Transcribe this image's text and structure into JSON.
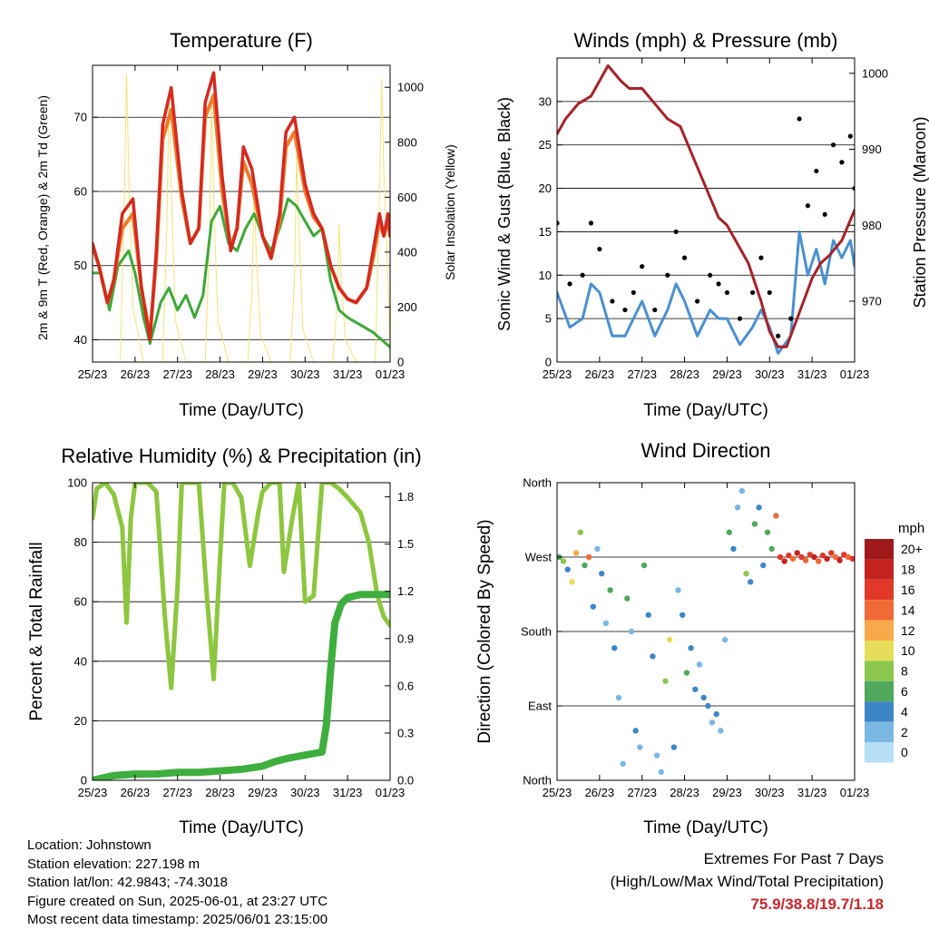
{
  "panels": {
    "temperature": {
      "title": "Temperature (F)",
      "ylabel_left": "2m & 9m T (Red, Orange) & 2m Td (Green)",
      "ylabel_right": "Solar Insolation (Yellow)",
      "xlabel": "Time (Day/UTC)"
    },
    "winds": {
      "title": "Winds (mph) & Pressure (mb)",
      "ylabel_left": "Sonic Wind & Gust (Blue, Black)",
      "ylabel_right": "Station Pressure (Maroon)",
      "xlabel": "Time (Day/UTC)"
    },
    "humidity": {
      "title": "Relative Humidity (%) & Precipitation (in)",
      "ylabel_left": "Percent & Total Rainfall",
      "xlabel": "Time (Day/UTC)"
    },
    "direction": {
      "title": "Wind Direction",
      "ylabel_left": "Direction (Colored By Speed)",
      "xlabel": "Time (Day/UTC)",
      "colorbar_unit": "mph"
    }
  },
  "info": {
    "location": "Location: Johnstown",
    "elevation": "Station elevation: 227.198 m",
    "latlon": "Station lat/lon: 42.9843; -74.3018",
    "created": "Figure created on Sun, 2025-06-01, at 23:27 UTC",
    "recent": "Most recent data timestamp: 2025/06/01 23:15:00"
  },
  "extremes": {
    "line1": "Extremes For Past 7 Days",
    "line2": "(High/Low/Max Wind/Total Precipitation)",
    "values": "75.9/38.8/19.7/1.18"
  },
  "colors": {
    "temp_2m": "#d42a20",
    "temp_9m": "#f07a2a",
    "dewpoint": "#3da838",
    "solar": "#f5e27a",
    "wind": "#4a90d0",
    "gust": "#000000",
    "pressure": "#a5232a",
    "rh": "#8dc63f",
    "precip": "#3eae3e"
  },
  "chart_data": [
    {
      "type": "line",
      "panel": "temperature",
      "x_ticks": [
        "25/23",
        "26/23",
        "27/23",
        "28/23",
        "29/23",
        "30/23",
        "31/23",
        "01/23"
      ],
      "xlim": [
        0,
        7
      ],
      "ylim": [
        37,
        77
      ],
      "y_ticks": [
        40,
        50,
        60,
        70
      ],
      "y2lim": [
        0,
        1080
      ],
      "y2_ticks": [
        0,
        200,
        400,
        600,
        800,
        1000
      ],
      "series": [
        {
          "name": "2m T",
          "axis": "left",
          "color": "#d42a20",
          "x": [
            0,
            0.15,
            0.35,
            0.5,
            0.7,
            0.95,
            1.15,
            1.35,
            1.5,
            1.65,
            1.85,
            2.1,
            2.3,
            2.5,
            2.65,
            2.85,
            3.05,
            3.25,
            3.4,
            3.55,
            3.75,
            4.0,
            4.2,
            4.4,
            4.55,
            4.75,
            5.0,
            5.2,
            5.4,
            5.6,
            5.8,
            6.0,
            6.2,
            6.45,
            6.6,
            6.75,
            6.85,
            6.95,
            7.0
          ],
          "y": [
            53,
            50,
            45,
            48,
            57,
            59,
            47,
            40,
            52,
            69,
            74,
            60,
            53,
            55,
            72,
            76,
            62,
            52,
            55,
            66,
            63,
            54,
            51,
            57,
            68,
            70,
            61,
            57,
            55,
            50,
            47,
            45.5,
            45,
            47,
            52,
            57,
            54,
            57,
            54
          ]
        },
        {
          "name": "9m T",
          "axis": "left",
          "color": "#f07a2a",
          "x": [
            0,
            0.15,
            0.35,
            0.5,
            0.7,
            0.95,
            1.15,
            1.35,
            1.5,
            1.65,
            1.85,
            2.1,
            2.3,
            2.5,
            2.65,
            2.85,
            3.05,
            3.25,
            3.4,
            3.55,
            3.75,
            4.0,
            4.2,
            4.4,
            4.55,
            4.75,
            5.0,
            5.2,
            5.4,
            5.6,
            5.8,
            6.0,
            6.2,
            6.45,
            6.6,
            6.75,
            6.85,
            6.95,
            7.0
          ],
          "y": [
            52.5,
            50,
            45,
            48,
            55,
            57,
            47,
            40.5,
            51,
            67,
            71,
            59,
            53,
            55,
            70,
            73,
            60,
            52.5,
            55,
            64,
            61,
            54,
            51,
            56,
            66,
            68,
            60,
            56.5,
            55,
            50,
            47,
            45.5,
            45,
            47,
            51,
            56,
            54,
            56,
            54
          ]
        },
        {
          "name": "2m Td",
          "axis": "left",
          "color": "#3da838",
          "x": [
            0,
            0.2,
            0.4,
            0.6,
            0.85,
            1.0,
            1.2,
            1.35,
            1.6,
            1.8,
            2.0,
            2.2,
            2.4,
            2.6,
            2.8,
            3.0,
            3.2,
            3.4,
            3.6,
            3.8,
            4.0,
            4.2,
            4.4,
            4.6,
            4.8,
            5.0,
            5.2,
            5.4,
            5.6,
            5.8,
            6.0,
            6.3,
            6.6,
            6.8,
            7.0
          ],
          "y": [
            49,
            49,
            44,
            50,
            52,
            49,
            43,
            39.5,
            45,
            47,
            44,
            46,
            43,
            46,
            56,
            58,
            53,
            52,
            55,
            57,
            54,
            52,
            55,
            59,
            58,
            56,
            54,
            55,
            48,
            44,
            43,
            42,
            41,
            40,
            39
          ]
        },
        {
          "name": "Solar",
          "axis": "right",
          "color": "#f5e27a",
          "x": [
            0,
            0.65,
            0.75,
            0.8,
            0.85,
            0.95,
            1.2,
            1.65,
            1.75,
            1.8,
            1.85,
            1.95,
            2.2,
            2.65,
            2.75,
            2.8,
            2.85,
            2.95,
            3.2,
            3.65,
            3.75,
            3.8,
            3.85,
            3.95,
            4.2,
            4.65,
            4.75,
            4.8,
            4.85,
            4.95,
            5.2,
            5.65,
            5.75,
            5.8,
            5.85,
            5.95,
            6.2,
            6.65,
            6.75,
            6.8,
            6.85,
            6.95,
            7.0
          ],
          "y": [
            0,
            0,
            600,
            1050,
            700,
            200,
            0,
            0,
            500,
            980,
            650,
            150,
            0,
            0,
            450,
            960,
            600,
            150,
            0,
            0,
            250,
            620,
            400,
            100,
            0,
            0,
            300,
            750,
            500,
            120,
            0,
            0,
            200,
            500,
            300,
            80,
            0,
            0,
            600,
            1030,
            700,
            300,
            0
          ]
        }
      ]
    },
    {
      "type": "line",
      "panel": "winds",
      "x_ticks": [
        "25/23",
        "26/23",
        "27/23",
        "28/23",
        "29/23",
        "30/23",
        "31/23",
        "01/23"
      ],
      "xlim": [
        0,
        7
      ],
      "ylim": [
        0,
        35
      ],
      "y_ticks": [
        0,
        5,
        10,
        15,
        20,
        25,
        30
      ],
      "y2lim": [
        962,
        1002
      ],
      "y2_ticks": [
        970,
        980,
        990,
        1000
      ],
      "series": [
        {
          "name": "Gust",
          "axis": "left",
          "color": "#000000",
          "x": [
            0,
            0.3,
            0.6,
            0.8,
            1.0,
            1.3,
            1.6,
            1.8,
            2.0,
            2.3,
            2.6,
            2.8,
            3.0,
            3.3,
            3.6,
            3.8,
            4.0,
            4.3,
            4.6,
            4.8,
            5.0,
            5.2,
            5.5,
            5.7,
            5.9,
            6.1,
            6.3,
            6.5,
            6.7,
            6.9,
            7.0
          ],
          "y": [
            16,
            9,
            10,
            16,
            13,
            7,
            6,
            8,
            11,
            6,
            10,
            15,
            12,
            7,
            10,
            9,
            8,
            5,
            8,
            12,
            8,
            3,
            5,
            28,
            18,
            22,
            17,
            25,
            23,
            26,
            20
          ]
        },
        {
          "name": "Wind",
          "axis": "left",
          "color": "#4a90d0",
          "x": [
            0,
            0.3,
            0.6,
            0.8,
            1.0,
            1.3,
            1.6,
            1.8,
            2.0,
            2.3,
            2.6,
            2.8,
            3.0,
            3.3,
            3.6,
            3.8,
            4.0,
            4.3,
            4.6,
            4.8,
            5.0,
            5.2,
            5.5,
            5.7,
            5.9,
            6.1,
            6.3,
            6.5,
            6.7,
            6.9,
            7.0
          ],
          "y": [
            8,
            4,
            5,
            9,
            8,
            3,
            3,
            5,
            7,
            3,
            6,
            9,
            7,
            3,
            6,
            5,
            5,
            2,
            4,
            6,
            4,
            1,
            3,
            15,
            10,
            13,
            9,
            14,
            12,
            14,
            11
          ]
        },
        {
          "name": "Pressure",
          "axis": "right",
          "color": "#a5232a",
          "x": [
            0,
            0.2,
            0.5,
            0.8,
            1.0,
            1.2,
            1.5,
            1.7,
            2.0,
            2.3,
            2.6,
            2.9,
            3.2,
            3.5,
            3.8,
            4.0,
            4.2,
            4.5,
            4.8,
            5.0,
            5.2,
            5.4,
            5.6,
            5.8,
            6.0,
            6.2,
            6.4,
            6.7,
            7.0
          ],
          "y": [
            992,
            994,
            996,
            997,
            999,
            1001,
            999,
            998,
            998,
            996,
            994,
            993,
            989,
            985,
            981,
            980,
            978,
            975,
            970,
            966,
            964,
            964,
            967,
            970,
            973,
            975,
            976,
            978,
            982
          ]
        }
      ]
    },
    {
      "type": "line",
      "panel": "humidity",
      "x_ticks": [
        "25/23",
        "26/23",
        "27/23",
        "28/23",
        "29/23",
        "30/23",
        "31/23",
        "01/23"
      ],
      "xlim": [
        0,
        7
      ],
      "ylim": [
        0,
        100
      ],
      "y_ticks": [
        0,
        20,
        40,
        60,
        80,
        100
      ],
      "y2lim": [
        0,
        1.89
      ],
      "y2_ticks": [
        0.0,
        0.3,
        0.6,
        0.9,
        1.2,
        1.5,
        1.8
      ],
      "series": [
        {
          "name": "RH",
          "axis": "left",
          "color": "#8dc63f",
          "x": [
            0,
            0.1,
            0.3,
            0.5,
            0.7,
            0.8,
            0.9,
            1.0,
            1.1,
            1.3,
            1.5,
            1.7,
            1.85,
            2.0,
            2.1,
            2.3,
            2.5,
            2.7,
            2.85,
            3.0,
            3.1,
            3.3,
            3.5,
            3.7,
            3.9,
            4.0,
            4.2,
            4.4,
            4.5,
            4.7,
            4.85,
            5.0,
            5.2,
            5.4,
            5.6,
            5.8,
            6.0,
            6.3,
            6.5,
            6.7,
            6.85,
            7.0
          ],
          "y": [
            88,
            98,
            100,
            96,
            85,
            53,
            88,
            100,
            100,
            100,
            97,
            55,
            31,
            65,
            100,
            100,
            100,
            60,
            34,
            75,
            100,
            100,
            95,
            72,
            90,
            97,
            100,
            100,
            70,
            88,
            100,
            60,
            62,
            100,
            100,
            98,
            95,
            90,
            80,
            62,
            55,
            52
          ]
        },
        {
          "name": "Precip",
          "axis": "right",
          "color": "#3eae3e",
          "x": [
            0,
            0.5,
            1.0,
            1.5,
            2.0,
            2.5,
            3.0,
            3.5,
            4.0,
            4.3,
            4.6,
            4.8,
            5.0,
            5.2,
            5.4,
            5.5,
            5.6,
            5.7,
            5.8,
            5.85,
            6.0,
            6.3,
            6.6,
            7.0
          ],
          "y": [
            0,
            0.03,
            0.04,
            0.04,
            0.05,
            0.05,
            0.06,
            0.07,
            0.09,
            0.12,
            0.14,
            0.15,
            0.16,
            0.17,
            0.18,
            0.35,
            0.7,
            1.0,
            1.08,
            1.12,
            1.16,
            1.18,
            1.18,
            1.18
          ]
        }
      ]
    },
    {
      "type": "scatter",
      "panel": "direction",
      "x_ticks": [
        "25/23",
        "26/23",
        "27/23",
        "28/23",
        "29/23",
        "30/23",
        "31/23",
        "01/23"
      ],
      "xlim": [
        0,
        7
      ],
      "ylim": [
        0,
        360
      ],
      "y_ticks": [
        0,
        90,
        180,
        270,
        360
      ],
      "y_tick_labels": [
        "North",
        "East",
        "South",
        "West",
        "North"
      ],
      "colorbar": {
        "unit": "mph",
        "labels": [
          "20+",
          "18",
          "16",
          "14",
          "12",
          "10",
          "8",
          "6",
          "4",
          "2",
          "0"
        ],
        "colors": [
          "#9e1a1a",
          "#c4221f",
          "#e0392a",
          "#f06a35",
          "#f8a94a",
          "#e6de5a",
          "#8cc74f",
          "#4fa85c",
          "#3d86c6",
          "#7ab7e2",
          "#b7dff5"
        ]
      },
      "x": [
        0.05,
        0.15,
        0.25,
        0.35,
        0.45,
        0.55,
        0.65,
        0.75,
        0.85,
        0.95,
        1.05,
        1.15,
        1.25,
        1.35,
        1.45,
        1.55,
        1.65,
        1.75,
        1.85,
        1.95,
        2.05,
        2.15,
        2.25,
        2.35,
        2.45,
        2.55,
        2.65,
        2.75,
        2.85,
        2.95,
        3.05,
        3.15,
        3.25,
        3.35,
        3.45,
        3.55,
        3.65,
        3.75,
        3.85,
        3.95,
        4.05,
        4.15,
        4.25,
        4.35,
        4.45,
        4.55,
        4.65,
        4.75,
        4.85,
        4.95,
        5.05,
        5.15,
        5.25,
        5.35,
        5.45,
        5.55,
        5.65,
        5.75,
        5.85,
        5.95,
        6.05,
        6.15,
        6.25,
        6.35,
        6.45,
        6.55,
        6.65,
        6.75,
        6.85,
        6.95
      ],
      "y": [
        270,
        265,
        255,
        240,
        275,
        300,
        260,
        270,
        210,
        280,
        250,
        190,
        230,
        160,
        100,
        20,
        220,
        180,
        60,
        40,
        260,
        200,
        150,
        30,
        10,
        120,
        170,
        40,
        230,
        200,
        130,
        160,
        110,
        140,
        100,
        90,
        70,
        80,
        60,
        170,
        300,
        280,
        330,
        350,
        250,
        240,
        310,
        330,
        260,
        300,
        280,
        320,
        270,
        265,
        272,
        268,
        275,
        270,
        266,
        273,
        270,
        265,
        272,
        268,
        275,
        270,
        266,
        273,
        270,
        268
      ],
      "speed": [
        6,
        8,
        4,
        10,
        12,
        8,
        6,
        14,
        4,
        2,
        4,
        2,
        6,
        4,
        2,
        2,
        6,
        2,
        4,
        2,
        6,
        4,
        4,
        2,
        2,
        8,
        10,
        4,
        2,
        4,
        6,
        4,
        4,
        2,
        4,
        4,
        2,
        4,
        2,
        2,
        6,
        4,
        2,
        2,
        8,
        4,
        6,
        4,
        4,
        6,
        6,
        14,
        16,
        18,
        16,
        14,
        18,
        16,
        14,
        16,
        18,
        14,
        16,
        18,
        16,
        14,
        18,
        16,
        14,
        16
      ]
    }
  ]
}
